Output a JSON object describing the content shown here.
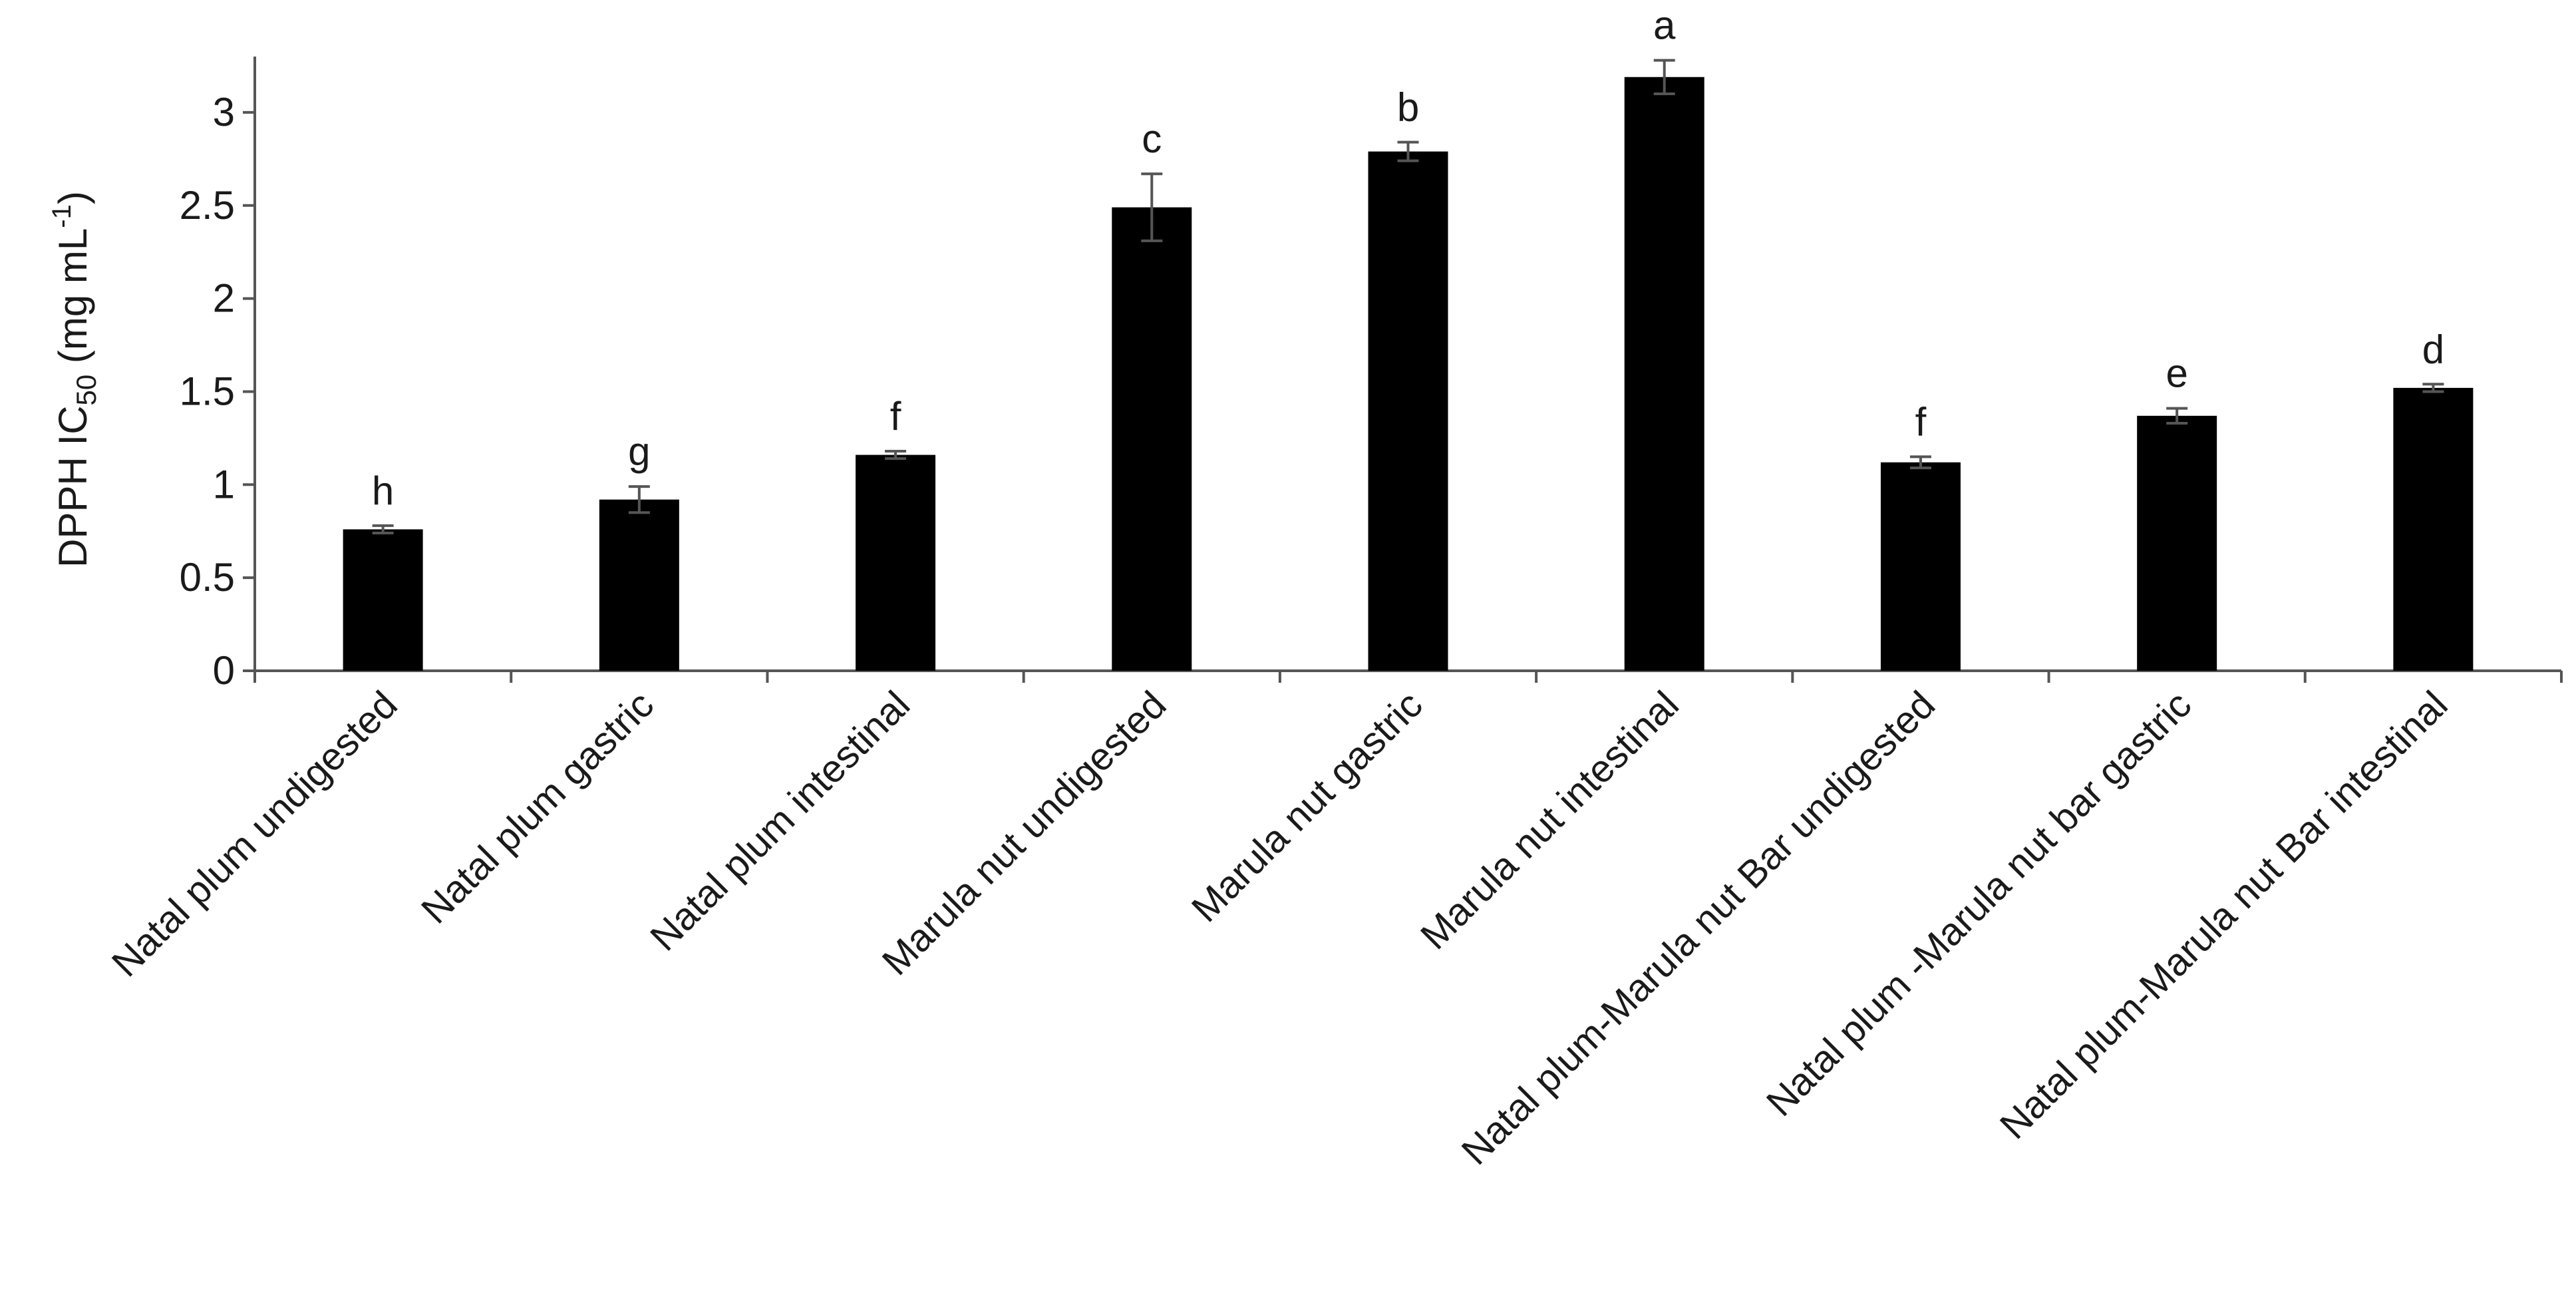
{
  "chart_data": {
    "type": "bar",
    "title": "",
    "xlabel": "",
    "ylabel": {
      "main": "DPPH IC",
      "subscript": "50",
      "unit_prefix": " (mg mL",
      "superscript": "-1",
      "unit_suffix": ")"
    },
    "ylim": [
      0,
      3.3
    ],
    "yticks": [
      0,
      0.5,
      1,
      1.5,
      2,
      2.5,
      3
    ],
    "ytick_labels": [
      "0",
      "0.5",
      "1",
      "1.5",
      "2",
      "2.5",
      "3"
    ],
    "categories": [
      "Natal plum undigested",
      "Natal plum  gastric",
      "Natal plum intestinal",
      "Marula nut undigested",
      "Marula nut gastric",
      "Marula nut intestinal",
      "Natal plum-Marula nut Bar undigested",
      "Natal plum -Marula nut bar  gastric",
      "Natal plum-Marula nut Bar intestinal"
    ],
    "values": [
      0.76,
      0.92,
      1.16,
      2.49,
      2.79,
      3.19,
      1.12,
      1.37,
      1.52
    ],
    "errors": [
      0.02,
      0.07,
      0.02,
      0.18,
      0.05,
      0.09,
      0.03,
      0.04,
      0.02
    ],
    "significance_letters": [
      "h",
      "g",
      "f",
      "c",
      "b",
      "a",
      "f",
      "e",
      "d"
    ],
    "grid": false,
    "legend": "none",
    "bar_color": "#000000",
    "axis_color": "#555555",
    "error_bar_color": "#555555"
  }
}
